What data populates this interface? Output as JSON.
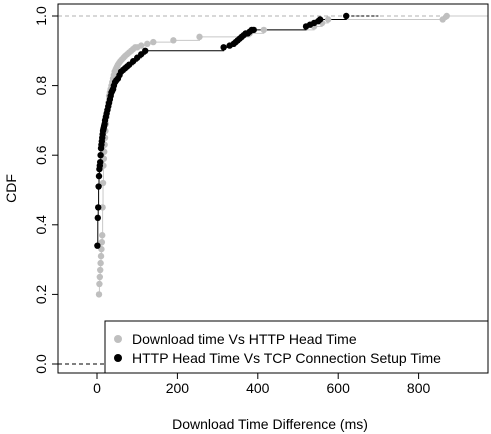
{
  "chart_data": {
    "type": "scatter",
    "xlabel": "Download Time Difference (ms)",
    "ylabel": "CDF",
    "xlim": [
      -100,
      900
    ],
    "ylim": [
      0,
      1
    ],
    "x_ticks": [
      0,
      200,
      400,
      600,
      800
    ],
    "x_tick_labels": [
      "0",
      "200",
      "400",
      "600",
      "800"
    ],
    "y_ticks": [
      0.0,
      0.2,
      0.4,
      0.6,
      0.8,
      1.0
    ],
    "y_tick_labels": [
      "0.0",
      "0.2",
      "0.4",
      "0.6",
      "0.8",
      "1.0"
    ],
    "reference_lines": [
      0,
      1
    ],
    "legend_position": "bottom-right",
    "colors": {
      "series_gray": "#bfbfbf",
      "series_black": "#000000",
      "reference": "#b0b0b0"
    },
    "series": [
      {
        "name": "Download time Vs HTTP Head Time",
        "color": "#bfbfbf",
        "x": [
          5,
          6,
          7,
          8,
          9,
          10,
          11,
          12,
          13,
          14,
          15,
          16,
          17,
          18,
          19,
          20,
          21,
          22,
          24,
          26,
          28,
          30,
          32,
          34,
          36,
          38,
          40,
          42,
          44,
          46,
          48,
          50,
          52,
          55,
          58,
          62,
          66,
          70,
          75,
          80,
          85,
          90,
          95,
          100,
          110,
          125,
          140,
          190,
          255,
          380,
          415,
          540,
          560,
          575,
          860,
          870
        ],
        "y": [
          0.2,
          0.23,
          0.25,
          0.27,
          0.29,
          0.31,
          0.33,
          0.35,
          0.37,
          0.45,
          0.52,
          0.57,
          0.59,
          0.61,
          0.63,
          0.65,
          0.67,
          0.69,
          0.71,
          0.73,
          0.75,
          0.77,
          0.78,
          0.79,
          0.8,
          0.81,
          0.82,
          0.83,
          0.84,
          0.845,
          0.85,
          0.855,
          0.86,
          0.865,
          0.87,
          0.875,
          0.88,
          0.885,
          0.89,
          0.895,
          0.9,
          0.905,
          0.91,
          0.91,
          0.915,
          0.92,
          0.925,
          0.93,
          0.94,
          0.95,
          0.96,
          0.97,
          0.98,
          0.99,
          0.99,
          1.0
        ]
      },
      {
        "name": "HTTP Head Time Vs TCP Connection Setup Time",
        "color": "#000000",
        "x": [
          1,
          2,
          3,
          4,
          5,
          6,
          7,
          8,
          9,
          10,
          11,
          12,
          13,
          14,
          15,
          16,
          17,
          18,
          19,
          20,
          22,
          24,
          26,
          28,
          30,
          32,
          34,
          36,
          38,
          40,
          42,
          45,
          48,
          52,
          56,
          60,
          65,
          70,
          75,
          80,
          90,
          100,
          110,
          120,
          315,
          330,
          340,
          345,
          350,
          355,
          360,
          365,
          370,
          375,
          380,
          385,
          390,
          520,
          530,
          540,
          550,
          555,
          620
        ],
        "y": [
          0.34,
          0.42,
          0.45,
          0.51,
          0.54,
          0.56,
          0.57,
          0.58,
          0.6,
          0.62,
          0.63,
          0.64,
          0.65,
          0.66,
          0.67,
          0.675,
          0.68,
          0.685,
          0.69,
          0.7,
          0.71,
          0.72,
          0.73,
          0.74,
          0.75,
          0.76,
          0.77,
          0.78,
          0.785,
          0.79,
          0.8,
          0.81,
          0.815,
          0.82,
          0.83,
          0.84,
          0.845,
          0.85,
          0.855,
          0.86,
          0.87,
          0.88,
          0.89,
          0.9,
          0.91,
          0.915,
          0.92,
          0.925,
          0.93,
          0.935,
          0.94,
          0.945,
          0.95,
          0.95,
          0.955,
          0.96,
          0.96,
          0.97,
          0.975,
          0.98,
          0.985,
          0.99,
          1.0
        ]
      }
    ]
  }
}
